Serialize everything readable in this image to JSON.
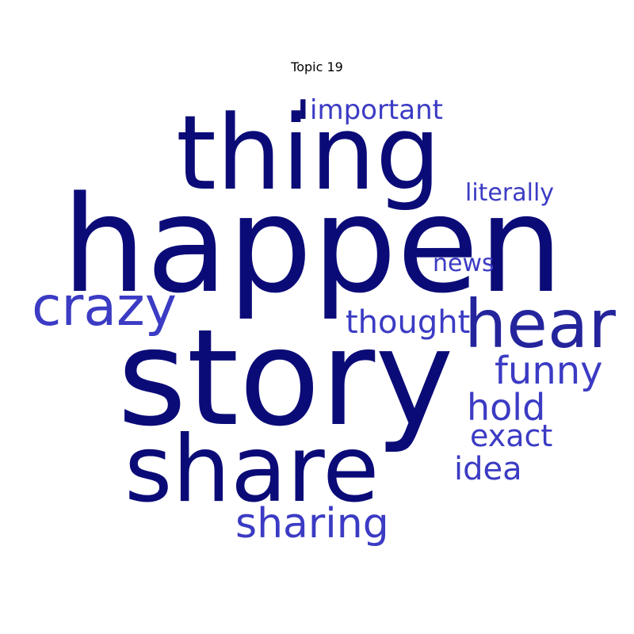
{
  "chart_data": {
    "type": "wordcloud",
    "title": "Topic 19",
    "colors": {
      "dark": "#0b0b78",
      "mid": "#24249c",
      "light": "#3b3bc4"
    },
    "words": [
      {
        "text": "happen",
        "weight": 1.0
      },
      {
        "text": "story",
        "weight": 0.98
      },
      {
        "text": "thing",
        "weight": 0.78
      },
      {
        "text": "share",
        "weight": 0.72
      },
      {
        "text": "hear",
        "weight": 0.52
      },
      {
        "text": "crazy",
        "weight": 0.43
      },
      {
        "text": "sharing",
        "weight": 0.33
      },
      {
        "text": "funny",
        "weight": 0.32
      },
      {
        "text": "hold",
        "weight": 0.3
      },
      {
        "text": "thought",
        "weight": 0.27
      },
      {
        "text": "idea",
        "weight": 0.26
      },
      {
        "text": "exact",
        "weight": 0.25
      },
      {
        "text": "important",
        "weight": 0.23
      },
      {
        "text": "literally",
        "weight": 0.2
      },
      {
        "text": "news",
        "weight": 0.2
      },
      {
        "text": "I",
        "weight": 0.2
      }
    ]
  }
}
